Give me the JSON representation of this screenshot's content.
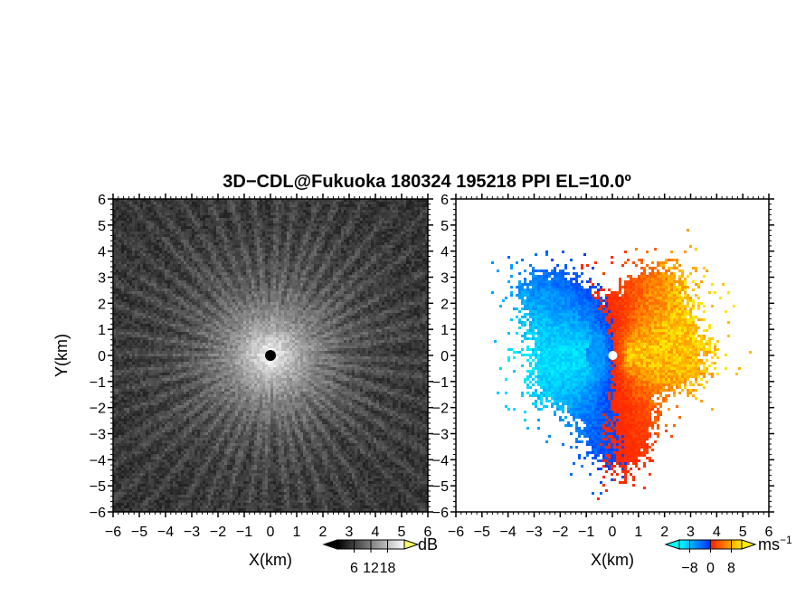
{
  "title": "3D−CDL@Fukuoka 180324 195218 PPI EL=10.0º",
  "chart_data": [
    {
      "type": "heatmap",
      "name": "reflectivity-panel",
      "xlabel": "X(km)",
      "ylabel": "Y(km)",
      "xlim": [
        -6,
        6
      ],
      "ylim": [
        -6,
        6
      ],
      "xticks": [
        "−6",
        "−5",
        "−4",
        "−3",
        "−2",
        "−1",
        "0",
        "1",
        "2",
        "3",
        "4",
        "5",
        "6"
      ],
      "yticks": [
        "6",
        "5",
        "4",
        "3",
        "2",
        "1",
        "0",
        "−1",
        "−2",
        "−3",
        "−4",
        "−5",
        "−6"
      ],
      "colorbar": {
        "unit": "dB",
        "ticks": [
          "6",
          "12",
          "18"
        ],
        "values": [
          6,
          12,
          18
        ],
        "range": [
          0,
          24
        ]
      },
      "colormap": [
        "#000000",
        "#ffffff"
      ]
    },
    {
      "type": "heatmap",
      "name": "velocity-panel",
      "xlabel": "X(km)",
      "ylabel": "",
      "xlim": [
        -6,
        6
      ],
      "ylim": [
        -6,
        6
      ],
      "xticks": [
        "−6",
        "−5",
        "−4",
        "−3",
        "−2",
        "−1",
        "0",
        "1",
        "2",
        "3",
        "4",
        "5",
        "6"
      ],
      "yticks": [
        "6",
        "5",
        "4",
        "3",
        "2",
        "1",
        "0",
        "−1",
        "−2",
        "−3",
        "−4",
        "−5",
        "−6"
      ],
      "colorbar": {
        "unit": "ms",
        "unit_sup": "−1",
        "ticks": [
          "−8",
          "0",
          "8"
        ],
        "values": [
          -8,
          0,
          8
        ],
        "range": [
          -12,
          12
        ]
      },
      "colormap": [
        "#00ffff",
        "#0033ff",
        "#ff2200",
        "#ffee00"
      ]
    }
  ]
}
